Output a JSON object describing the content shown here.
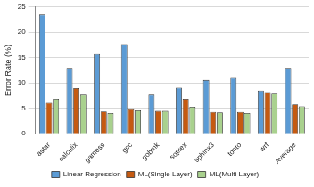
{
  "chart_data": {
    "type": "bar",
    "y_label": "Error Rate (%)",
    "categories": [
      "astar",
      "calculix",
      "gamess",
      "gcc",
      "gobmk",
      "soplex",
      "sphinx3",
      "tonto",
      "wrf",
      "Average"
    ],
    "series": [
      {
        "name": "Linear Regression",
        "color": "#5b9bd5",
        "values": [
          23.5,
          13,
          15.7,
          17.7,
          7.7,
          9.1,
          10.6,
          11,
          8.5,
          13
        ]
      },
      {
        "name": "ML(Single Layer)",
        "color": "#c55a11",
        "values": [
          6.1,
          9,
          4.4,
          5,
          4.5,
          6.9,
          4.3,
          4.3,
          8.2,
          5.8
        ]
      },
      {
        "name": "ML(Multi Layer)",
        "color": "#a9d18e",
        "values": [
          6.9,
          7.7,
          4.1,
          4.6,
          4.5,
          5.3,
          4.2,
          4.1,
          7.9,
          5.4
        ]
      }
    ],
    "ylim": [
      0,
      25
    ],
    "yticks": [
      0,
      5,
      10,
      15,
      20,
      25
    ],
    "grid": true,
    "legend": "bottom"
  }
}
